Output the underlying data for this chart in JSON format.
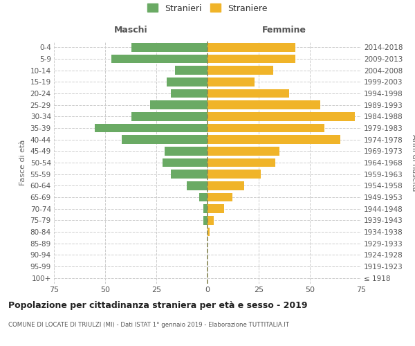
{
  "age_groups": [
    "100+",
    "95-99",
    "90-94",
    "85-89",
    "80-84",
    "75-79",
    "70-74",
    "65-69",
    "60-64",
    "55-59",
    "50-54",
    "45-49",
    "40-44",
    "35-39",
    "30-34",
    "25-29",
    "20-24",
    "15-19",
    "10-14",
    "5-9",
    "0-4"
  ],
  "birth_years": [
    "≤ 1918",
    "1919-1923",
    "1924-1928",
    "1929-1933",
    "1934-1938",
    "1939-1943",
    "1944-1948",
    "1949-1953",
    "1954-1958",
    "1959-1963",
    "1964-1968",
    "1969-1973",
    "1974-1978",
    "1979-1983",
    "1984-1988",
    "1989-1993",
    "1994-1998",
    "1999-2003",
    "2004-2008",
    "2009-2013",
    "2014-2018"
  ],
  "males": [
    0,
    0,
    0,
    0,
    0,
    2,
    2,
    4,
    10,
    18,
    22,
    21,
    42,
    55,
    37,
    28,
    18,
    20,
    16,
    47,
    37
  ],
  "females": [
    0,
    0,
    0,
    0,
    1,
    3,
    8,
    12,
    18,
    26,
    33,
    35,
    65,
    57,
    72,
    55,
    40,
    23,
    32,
    43,
    43
  ],
  "male_color": "#6aaa64",
  "female_color": "#f0b429",
  "title": "Popolazione per cittadinanza straniera per età e sesso - 2019",
  "subtitle": "COMUNE DI LOCATE DI TRIULZI (MI) - Dati ISTAT 1° gennaio 2019 - Elaborazione TUTTITALIA.IT",
  "legend_male": "Stranieri",
  "legend_female": "Straniere",
  "xlim": 75,
  "xlabel_left": "Maschi",
  "xlabel_right": "Femmine",
  "ylabel_left": "Fasce di età",
  "ylabel_right": "Anni di nascita",
  "background_color": "#ffffff",
  "grid_color": "#cccccc",
  "center_line_color": "#888855"
}
